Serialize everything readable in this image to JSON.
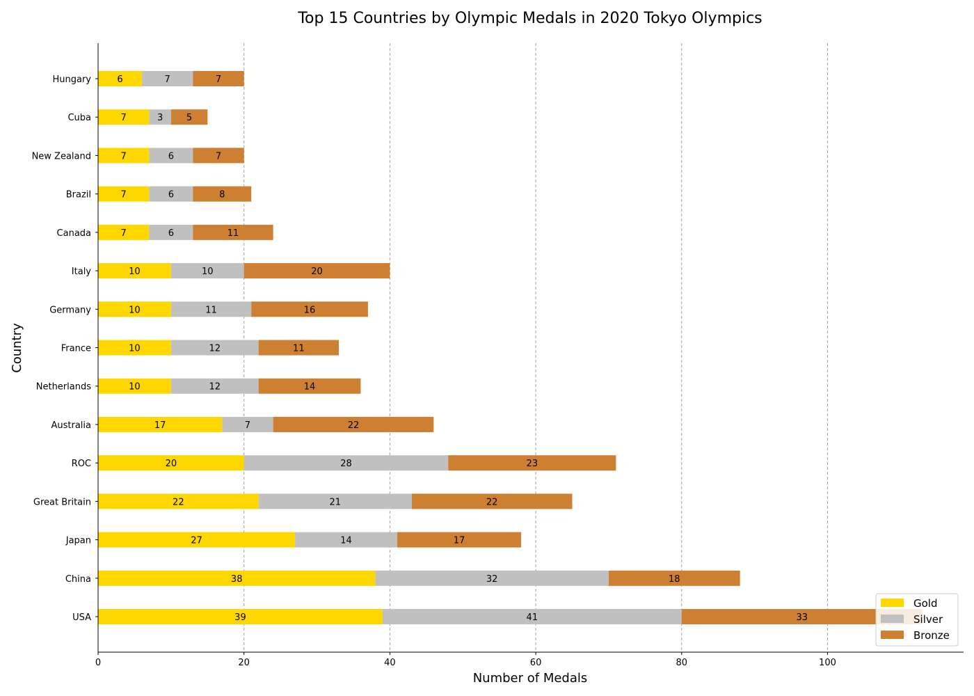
{
  "chart_data": {
    "type": "bar",
    "orientation": "horizontal",
    "stacked": true,
    "title": "Top 15 Countries by Olympic Medals in 2020 Tokyo Olympics",
    "xlabel": "Number of Medals",
    "ylabel": "Country",
    "categories": [
      "USA",
      "China",
      "Japan",
      "Great Britain",
      "ROC",
      "Australia",
      "Netherlands",
      "France",
      "Germany",
      "Italy",
      "Canada",
      "Brazil",
      "New Zealand",
      "Cuba",
      "Hungary"
    ],
    "series": [
      {
        "name": "Gold",
        "color": "#FFD700",
        "values": [
          39,
          38,
          27,
          22,
          20,
          17,
          10,
          10,
          10,
          10,
          7,
          7,
          7,
          7,
          6
        ]
      },
      {
        "name": "Silver",
        "color": "#C0C0C0",
        "values": [
          41,
          32,
          14,
          21,
          28,
          7,
          12,
          12,
          11,
          10,
          6,
          6,
          6,
          3,
          7
        ]
      },
      {
        "name": "Bronze",
        "color": "#CD7F32",
        "values": [
          33,
          18,
          17,
          22,
          23,
          22,
          14,
          11,
          16,
          20,
          11,
          8,
          7,
          5,
          7
        ]
      }
    ],
    "xlim": [
      0,
      118.65
    ],
    "xticks": [
      0,
      20,
      40,
      60,
      80,
      100
    ],
    "grid": "x-dashed",
    "legend_position": "bottom-right"
  }
}
